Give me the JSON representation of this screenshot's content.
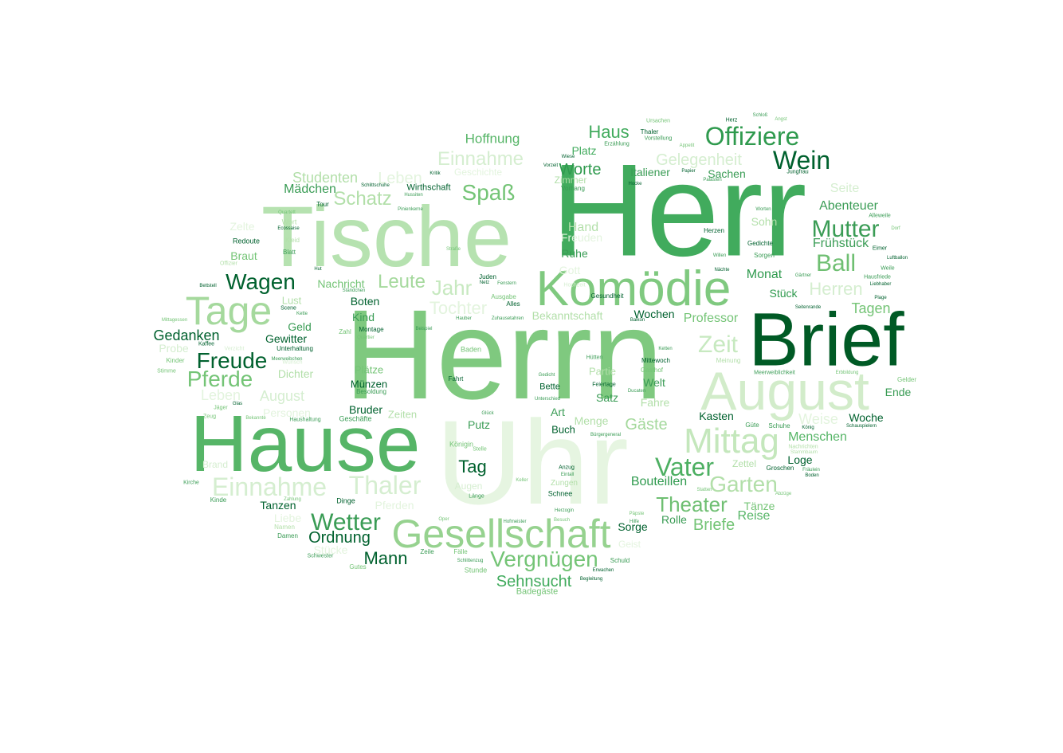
{
  "words": [
    {
      "text": "Uhr",
      "color": "#e6f5e1"
    },
    {
      "text": "Herrn",
      "color": "#7fc97f"
    },
    {
      "text": "Herr",
      "color": "#41ab5d"
    },
    {
      "text": "Tische",
      "color": "#b6e2b0"
    },
    {
      "text": "Hause",
      "color": "#56b567"
    },
    {
      "text": "Brief",
      "color": "#005a25"
    },
    {
      "text": "August",
      "color": "#d2ecca"
    },
    {
      "text": "Komödie",
      "color": "#7fc97f"
    },
    {
      "text": "Gesellschaft",
      "color": "#96d28f"
    },
    {
      "text": "Tage",
      "color": "#a5d99d"
    },
    {
      "text": "Mittag",
      "color": "#c4e7bc"
    },
    {
      "text": "Offiziere",
      "color": "#2f9a4e"
    },
    {
      "text": "Einnahme",
      "color": "#d5eed0"
    },
    {
      "text": "Thaler",
      "color": "#d5eed0"
    },
    {
      "text": "Wein",
      "color": "#00612e"
    },
    {
      "text": "Mutter",
      "color": "#3a9c55"
    },
    {
      "text": "Vater",
      "color": "#4daf62"
    },
    {
      "text": "Vergnügen",
      "color": "#74c476"
    },
    {
      "text": "Pferde",
      "color": "#74c476"
    },
    {
      "text": "Freude",
      "color": "#00612e"
    },
    {
      "text": "Ball",
      "color": "#6fbf72"
    },
    {
      "text": "Wetter",
      "color": "#3a9c55"
    },
    {
      "text": "Zeit",
      "color": "#c7e9c0"
    },
    {
      "text": "Wagen",
      "color": "#00612e"
    },
    {
      "text": "Garten",
      "color": "#b2dfa9"
    },
    {
      "text": "Theater",
      "color": "#6fbf72"
    },
    {
      "text": "Spaß",
      "color": "#74c476"
    },
    {
      "text": "Schatz",
      "color": "#b2dfa9"
    },
    {
      "text": "Jahr",
      "color": "#c7e9c0"
    },
    {
      "text": "Leute",
      "color": "#a5d99d"
    },
    {
      "text": "Herren",
      "color": "#d5eed0"
    },
    {
      "text": "Einnahme",
      "color": "#d5eed0"
    },
    {
      "text": "Tochter",
      "color": "#e3f4de"
    },
    {
      "text": "Ordnung",
      "color": "#00612e"
    },
    {
      "text": "Mann",
      "color": "#00612e"
    },
    {
      "text": "Sehnsucht",
      "color": "#41ab5d"
    },
    {
      "text": "Haus",
      "color": "#41ab5d"
    },
    {
      "text": "Worte",
      "color": "#2f9a4e"
    },
    {
      "text": "Gelegenheit",
      "color": "#d5eed0"
    },
    {
      "text": "Gäste",
      "color": "#a5d99d"
    },
    {
      "text": "Briefe",
      "color": "#74c476"
    },
    {
      "text": "Tag",
      "color": "#00612e"
    },
    {
      "text": "Hoffnung",
      "color": "#56b567"
    },
    {
      "text": "Studenten",
      "color": "#b2dfa9"
    },
    {
      "text": "Leben",
      "color": "#e3f4de"
    },
    {
      "text": "Mädchen",
      "color": "#3a9c55"
    },
    {
      "text": "Gedanken",
      "color": "#00612e"
    },
    {
      "text": "Abenteuer",
      "color": "#3a9c55"
    },
    {
      "text": "Frühstück",
      "color": "#3a9c55"
    },
    {
      "text": "Tagen",
      "color": "#74c476"
    },
    {
      "text": "Professor",
      "color": "#74c476"
    },
    {
      "text": "Menschen",
      "color": "#56b567"
    },
    {
      "text": "Bouteillen",
      "color": "#2f9a4e"
    },
    {
      "text": "Kasten",
      "color": "#00612e"
    },
    {
      "text": "Woche",
      "color": "#00612e"
    },
    {
      "text": "Ende",
      "color": "#3a9c55"
    },
    {
      "text": "Reise",
      "color": "#56b567"
    },
    {
      "text": "Tänze",
      "color": "#74c476"
    },
    {
      "text": "Rolle",
      "color": "#3a9c55"
    },
    {
      "text": "Sorge",
      "color": "#00612e"
    },
    {
      "text": "Loge",
      "color": "#00612e"
    },
    {
      "text": "Zettel",
      "color": "#b2dfa9"
    },
    {
      "text": "Weise",
      "color": "#e3f4de"
    },
    {
      "text": "Seite",
      "color": "#d5eed0"
    },
    {
      "text": "Sohn",
      "color": "#b2dfa9"
    },
    {
      "text": "Monat",
      "color": "#2f9a4e"
    },
    {
      "text": "Stück",
      "color": "#2f9a4e"
    },
    {
      "text": "Sachen",
      "color": "#3a9c55"
    },
    {
      "text": "Italiener",
      "color": "#3a9c55"
    },
    {
      "text": "Platz",
      "color": "#41ab5d"
    },
    {
      "text": "Zimmer",
      "color": "#b2dfa9"
    },
    {
      "text": "Hand",
      "color": "#b2dfa9"
    },
    {
      "text": "Freuden",
      "color": "#e3f4de"
    },
    {
      "text": "Ruhe",
      "color": "#3a9c55"
    },
    {
      "text": "Gott",
      "color": "#e3f4de"
    },
    {
      "text": "Bekanntschaft",
      "color": "#b2dfa9"
    },
    {
      "text": "Wochen",
      "color": "#00612e"
    },
    {
      "text": "Partie",
      "color": "#b2dfa9"
    },
    {
      "text": "Welt",
      "color": "#3a9c55"
    },
    {
      "text": "Satz",
      "color": "#3a9c55"
    },
    {
      "text": "Fahre",
      "color": "#b2dfa9"
    },
    {
      "text": "Menge",
      "color": "#b2dfa9"
    },
    {
      "text": "Art",
      "color": "#3a9c55"
    },
    {
      "text": "Buch",
      "color": "#00612e"
    },
    {
      "text": "Putz",
      "color": "#3a9c55"
    },
    {
      "text": "Augen",
      "color": "#d5eed0"
    },
    {
      "text": "Zungen",
      "color": "#b2dfa9"
    },
    {
      "text": "Schnee",
      "color": "#00612e"
    },
    {
      "text": "Geist",
      "color": "#e3f4de"
    },
    {
      "text": "Boten",
      "color": "#00612e"
    },
    {
      "text": "Kind",
      "color": "#3a9c55"
    },
    {
      "text": "Plätze",
      "color": "#74c476"
    },
    {
      "text": "Münzen",
      "color": "#00612e"
    },
    {
      "text": "Bruder",
      "color": "#00612e"
    },
    {
      "text": "Zeiten",
      "color": "#b2dfa9"
    },
    {
      "text": "Pferden",
      "color": "#e3f4de"
    },
    {
      "text": "Tanzen",
      "color": "#00612e"
    },
    {
      "text": "Dinge",
      "color": "#00612e"
    },
    {
      "text": "Leben",
      "color": "#e3f4de"
    },
    {
      "text": "August",
      "color": "#d5eed0"
    },
    {
      "text": "Personen",
      "color": "#e3f4de"
    },
    {
      "text": "Dichter",
      "color": "#b2dfa9"
    },
    {
      "text": "Gewitter",
      "color": "#00612e"
    },
    {
      "text": "Geld",
      "color": "#3a9c55"
    },
    {
      "text": "Lust",
      "color": "#b2dfa9"
    },
    {
      "text": "Nachricht",
      "color": "#74c476"
    },
    {
      "text": "Braut",
      "color": "#74c476"
    },
    {
      "text": "Zelte",
      "color": "#e3f4de"
    },
    {
      "text": "Probe",
      "color": "#d5eed0"
    },
    {
      "text": "Brand",
      "color": "#d5eed0"
    },
    {
      "text": "Liebe",
      "color": "#e3f4de"
    },
    {
      "text": "Stücke",
      "color": "#e3f4de"
    },
    {
      "text": "Wirthschaft",
      "color": "#00612e"
    },
    {
      "text": "Geschichte",
      "color": "#e3f4de"
    },
    {
      "text": "Badegäste",
      "color": "#74c476"
    },
    {
      "text": "Redoute",
      "color": "#00612e"
    },
    {
      "text": "Wort",
      "color": "#b2dfa9"
    },
    {
      "text": "Blatt",
      "color": "#3a9c55"
    },
    {
      "text": "Kleid",
      "color": "#b2dfa9"
    },
    {
      "text": "Offizier",
      "color": "#b2dfa9"
    },
    {
      "text": "Unterhaltung",
      "color": "#00612e"
    },
    {
      "text": "Montage",
      "color": "#00612e"
    },
    {
      "text": "Kaffee",
      "color": "#00612e"
    },
    {
      "text": "Scene",
      "color": "#00612e"
    },
    {
      "text": "Kinder",
      "color": "#74c476"
    },
    {
      "text": "Stimme",
      "color": "#74c476"
    },
    {
      "text": "Jäger",
      "color": "#74c476"
    },
    {
      "text": "Glas",
      "color": "#00612e"
    },
    {
      "text": "Haushaltung",
      "color": "#3a9c55"
    },
    {
      "text": "Geschäfte",
      "color": "#3a9c55"
    },
    {
      "text": "Kirche",
      "color": "#3a9c55"
    },
    {
      "text": "Kinde",
      "color": "#3a9c55"
    },
    {
      "text": "Zahlung",
      "color": "#74c476"
    },
    {
      "text": "Namen",
      "color": "#b2dfa9"
    },
    {
      "text": "Damen",
      "color": "#3a9c55"
    },
    {
      "text": "Schwester",
      "color": "#3a9c55"
    },
    {
      "text": "Gutes",
      "color": "#74c476"
    },
    {
      "text": "Zeile",
      "color": "#3a9c55"
    },
    {
      "text": "Fälle",
      "color": "#74c476"
    },
    {
      "text": "Schlittenzug",
      "color": "#3a9c55"
    },
    {
      "text": "Stunde",
      "color": "#74c476"
    },
    {
      "text": "Juden",
      "color": "#00612e"
    },
    {
      "text": "Netz",
      "color": "#00612e"
    },
    {
      "text": "Fenstern",
      "color": "#3a9c55"
    },
    {
      "text": "Alles",
      "color": "#00612e"
    },
    {
      "text": "Ausgabe",
      "color": "#74c476"
    },
    {
      "text": "Zuhausetahren",
      "color": "#3a9c55"
    },
    {
      "text": "Hauber",
      "color": "#3a9c55"
    },
    {
      "text": "Baden",
      "color": "#74c476"
    },
    {
      "text": "Fahrt",
      "color": "#00612e"
    },
    {
      "text": "Bette",
      "color": "#00612e"
    },
    {
      "text": "Unterschied",
      "color": "#3a9c55"
    },
    {
      "text": "Gedicht",
      "color": "#3a9c55"
    },
    {
      "text": "Hütten",
      "color": "#3a9c55"
    },
    {
      "text": "Mittewoch",
      "color": "#00612e"
    },
    {
      "text": "Feiertage",
      "color": "#00612e"
    },
    {
      "text": "Ducaten",
      "color": "#3a9c55"
    },
    {
      "text": "Gasthof",
      "color": "#74c476"
    },
    {
      "text": "Ketten",
      "color": "#3a9c55"
    },
    {
      "text": "Meinung",
      "color": "#b2dfa9"
    },
    {
      "text": "Gesundheit",
      "color": "#00612e"
    },
    {
      "text": "Hochzeit",
      "color": "#d5eed0"
    },
    {
      "text": "Bürgergeneral",
      "color": "#3a9c55"
    },
    {
      "text": "Königin",
      "color": "#74c476"
    },
    {
      "text": "Stelle",
      "color": "#74c476"
    },
    {
      "text": "Anzug",
      "color": "#00612e"
    },
    {
      "text": "Eintall",
      "color": "#3a9c55"
    },
    {
      "text": "Keller",
      "color": "#74c476"
    },
    {
      "text": "Länge",
      "color": "#3a9c55"
    },
    {
      "text": "Herzogin",
      "color": "#3a9c55"
    },
    {
      "text": "Besuch",
      "color": "#74c476"
    },
    {
      "text": "Hofmeister",
      "color": "#3a9c55"
    },
    {
      "text": "Oper",
      "color": "#74c476"
    },
    {
      "text": "Erwachen",
      "color": "#00612e"
    },
    {
      "text": "Begleitung",
      "color": "#00612e"
    },
    {
      "text": "Schuld",
      "color": "#3a9c55"
    },
    {
      "text": "Hilfe",
      "color": "#3a9c55"
    },
    {
      "text": "Päpste",
      "color": "#74c476"
    },
    {
      "text": "Statten",
      "color": "#74c476"
    },
    {
      "text": "Groschen",
      "color": "#00612e"
    },
    {
      "text": "Fräulein",
      "color": "#3a9c55"
    },
    {
      "text": "Boden",
      "color": "#00612e"
    },
    {
      "text": "Schuhe",
      "color": "#3a9c55"
    },
    {
      "text": "König",
      "color": "#00612e"
    },
    {
      "text": "Güte",
      "color": "#3a9c55"
    },
    {
      "text": "Schauspielern",
      "color": "#00612e"
    },
    {
      "text": "Meerweiblichkeit",
      "color": "#3a9c55"
    },
    {
      "text": "Gelder",
      "color": "#74c476"
    },
    {
      "text": "Erbbildung",
      "color": "#74c476"
    },
    {
      "text": "Plage",
      "color": "#00612e"
    },
    {
      "text": "Liebhaber",
      "color": "#00612e"
    },
    {
      "text": "Hausfriede",
      "color": "#3a9c55"
    },
    {
      "text": "Weile",
      "color": "#3a9c55"
    },
    {
      "text": "Luftballon",
      "color": "#00612e"
    },
    {
      "text": "Eimer",
      "color": "#00612e"
    },
    {
      "text": "Alleweile",
      "color": "#3a9c55"
    },
    {
      "text": "Dorf",
      "color": "#74c476"
    },
    {
      "text": "Gärtner",
      "color": "#3a9c55"
    },
    {
      "text": "Seitenrande",
      "color": "#00612e"
    },
    {
      "text": "Gedichte",
      "color": "#00612e"
    },
    {
      "text": "Sorgen",
      "color": "#3a9c55"
    },
    {
      "text": "Herzen",
      "color": "#00612e"
    },
    {
      "text": "Willen",
      "color": "#3a9c55"
    },
    {
      "text": "Nächte",
      "color": "#00612e"
    },
    {
      "text": "Palästen",
      "color": "#3a9c55"
    },
    {
      "text": "Papier",
      "color": "#00612e"
    },
    {
      "text": "Jungfrau",
      "color": "#00612e"
    },
    {
      "text": "Herz",
      "color": "#00612e"
    },
    {
      "text": "Schloß",
      "color": "#3a9c55"
    },
    {
      "text": "Angst",
      "color": "#74c476"
    },
    {
      "text": "Thaler",
      "color": "#00612e"
    },
    {
      "text": "Vorstellung",
      "color": "#3a9c55"
    },
    {
      "text": "Erzählung",
      "color": "#3a9c55"
    },
    {
      "text": "Ursachen",
      "color": "#74c476"
    },
    {
      "text": "Appetit",
      "color": "#74c476"
    },
    {
      "text": "Hocke",
      "color": "#00612e"
    },
    {
      "text": "Vorhang",
      "color": "#3a9c55"
    },
    {
      "text": "Kritik",
      "color": "#00612e"
    },
    {
      "text": "Hussiten",
      "color": "#3a9c55"
    },
    {
      "text": "Schlittschuhe",
      "color": "#00612e"
    },
    {
      "text": "Pinienkerne",
      "color": "#3a9c55"
    },
    {
      "text": "Tour",
      "color": "#00612e"
    },
    {
      "text": "Quartett",
      "color": "#74c476"
    },
    {
      "text": "Ecossaise",
      "color": "#00612e"
    },
    {
      "text": "Straße",
      "color": "#74c476"
    },
    {
      "text": "Wiese",
      "color": "#00612e"
    },
    {
      "text": "Vorzeit",
      "color": "#00612e"
    },
    {
      "text": "Zeug",
      "color": "#74c476"
    },
    {
      "text": "Bekannte",
      "color": "#74c476"
    },
    {
      "text": "Verzicht",
      "color": "#d5eed0"
    },
    {
      "text": "Wunsch",
      "color": "#d5eed0"
    },
    {
      "text": "Mittagessen",
      "color": "#74c476"
    },
    {
      "text": "Bettstell",
      "color": "#00612e"
    },
    {
      "text": "Beispiel",
      "color": "#3a9c55"
    },
    {
      "text": "Quartier",
      "color": "#74c476"
    },
    {
      "text": "Zahl",
      "color": "#74c476"
    },
    {
      "text": "Besoldung",
      "color": "#3a9c55"
    },
    {
      "text": "Ständchen",
      "color": "#3a9c55"
    },
    {
      "text": "Meerweibchen",
      "color": "#3a9c55"
    },
    {
      "text": "Glück",
      "color": "#3a9c55"
    },
    {
      "text": "Hut",
      "color": "#00612e"
    },
    {
      "text": "Kette",
      "color": "#3a9c55"
    },
    {
      "text": "Balkon",
      "color": "#00612e"
    },
    {
      "text": "Worten",
      "color": "#3a9c55"
    },
    {
      "text": "Nachrichten",
      "color": "#b2dfa9"
    },
    {
      "text": "Stammbaum",
      "color": "#b2dfa9"
    },
    {
      "text": "Abzüge",
      "color": "#74c476"
    }
  ]
}
